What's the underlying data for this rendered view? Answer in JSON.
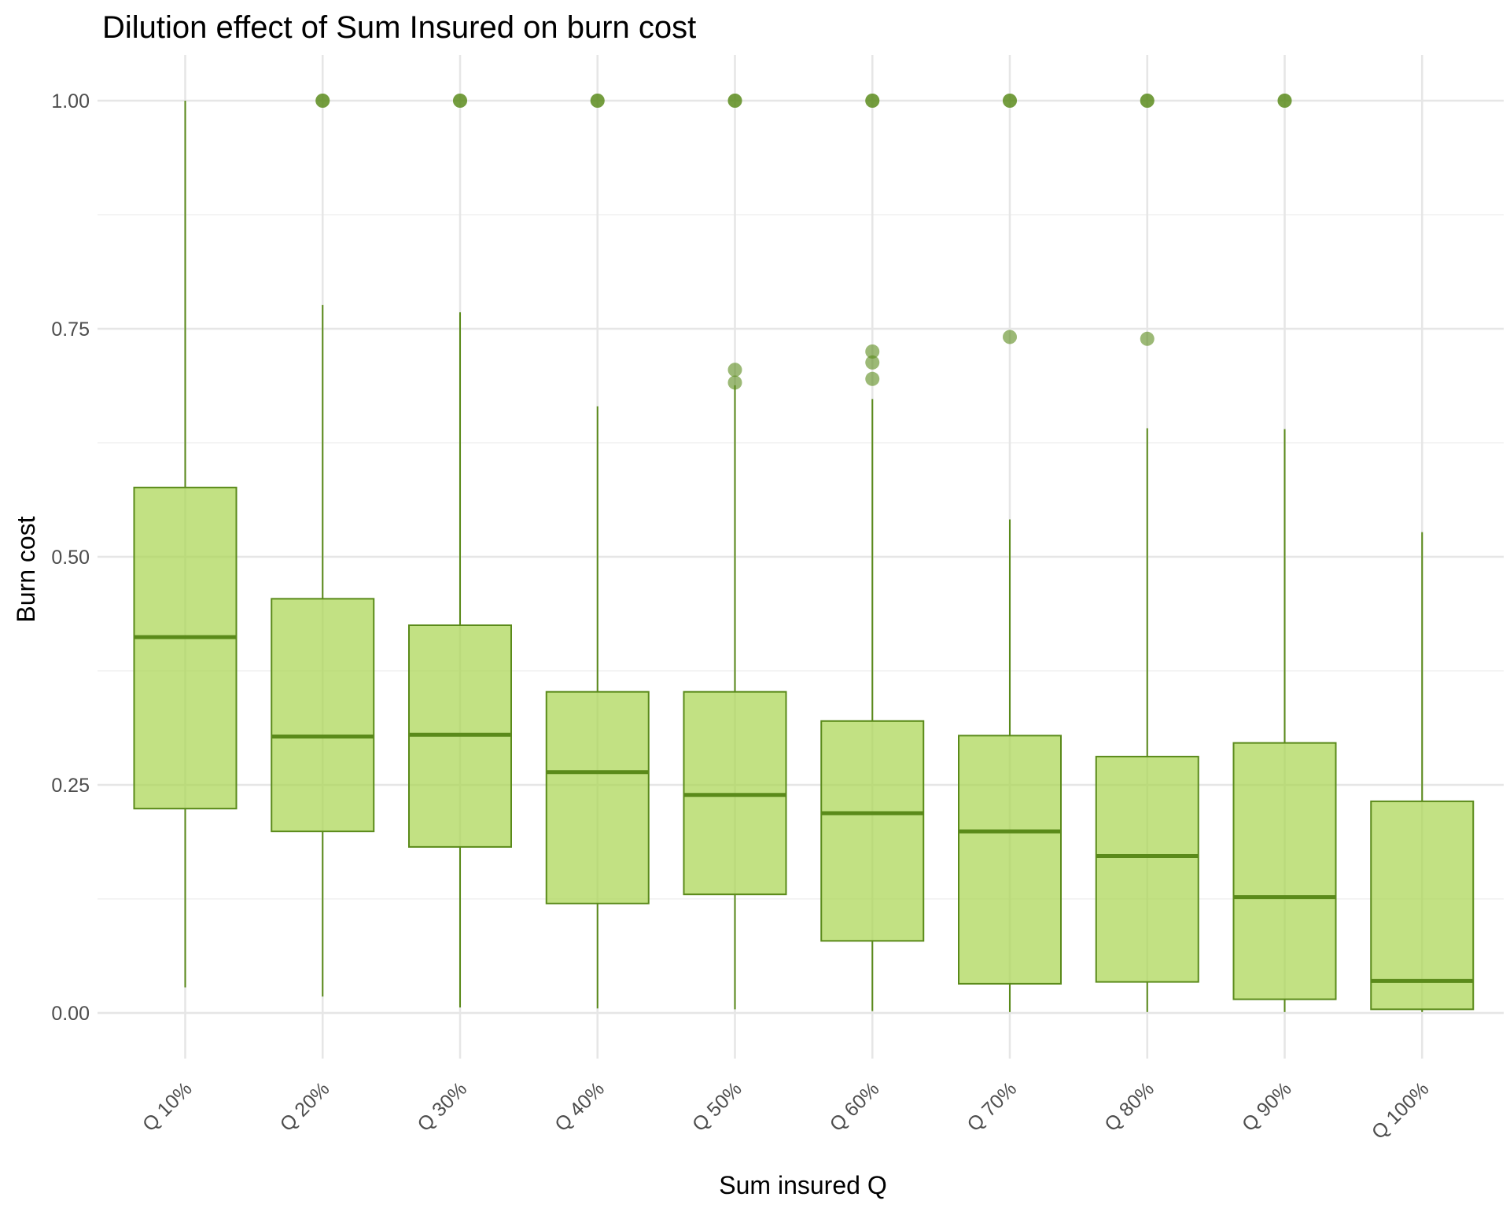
{
  "chart_data": {
    "type": "boxplot",
    "title": "Dilution effect of Sum Insured on burn cost",
    "xlabel": "Sum insured Q",
    "ylabel": "Burn cost",
    "ylim": [
      -0.05,
      1.05
    ],
    "yticks": [
      "0.00",
      "0.25",
      "0.50",
      "0.75",
      "1.00"
    ],
    "grid": true,
    "legend": "none",
    "colors": {
      "fill": "#a8d44e",
      "line": "#5a8a1a",
      "outlier": "#5a8a1a"
    },
    "categories": [
      "Q 10%",
      "Q 20%",
      "Q 30%",
      "Q 40%",
      "Q 50%",
      "Q 60%",
      "Q 70%",
      "Q 80%",
      "Q 90%",
      "Q 100%"
    ],
    "boxes": [
      {
        "category": "Q 10%",
        "whisker_low": 0.028,
        "q1": 0.224,
        "median": 0.412,
        "q3": 0.576,
        "whisker_high": 1.0,
        "outliers": []
      },
      {
        "category": "Q 20%",
        "whisker_low": 0.018,
        "q1": 0.199,
        "median": 0.303,
        "q3": 0.454,
        "whisker_high": 0.776,
        "outliers": [
          1.0
        ]
      },
      {
        "category": "Q 30%",
        "whisker_low": 0.006,
        "q1": 0.182,
        "median": 0.305,
        "q3": 0.425,
        "whisker_high": 0.768,
        "outliers": [
          1.0
        ]
      },
      {
        "category": "Q 40%",
        "whisker_low": 0.005,
        "q1": 0.12,
        "median": 0.264,
        "q3": 0.352,
        "whisker_high": 0.665,
        "outliers": [
          1.0
        ]
      },
      {
        "category": "Q 50%",
        "whisker_low": 0.004,
        "q1": 0.13,
        "median": 0.239,
        "q3": 0.352,
        "whisker_high": 0.688,
        "outliers": [
          0.705,
          0.691,
          1.0
        ]
      },
      {
        "category": "Q 60%",
        "whisker_low": 0.002,
        "q1": 0.079,
        "median": 0.219,
        "q3": 0.32,
        "whisker_high": 0.673,
        "outliers": [
          0.725,
          0.713,
          0.695,
          1.0
        ]
      },
      {
        "category": "Q 70%",
        "whisker_low": 0.001,
        "q1": 0.032,
        "median": 0.199,
        "q3": 0.304,
        "whisker_high": 0.541,
        "outliers": [
          0.741,
          1.0
        ]
      },
      {
        "category": "Q 80%",
        "whisker_low": 0.001,
        "q1": 0.034,
        "median": 0.172,
        "q3": 0.281,
        "whisker_high": 0.641,
        "outliers": [
          0.739,
          1.0
        ]
      },
      {
        "category": "Q 90%",
        "whisker_low": 0.001,
        "q1": 0.015,
        "median": 0.127,
        "q3": 0.296,
        "whisker_high": 0.64,
        "outliers": [
          1.0
        ]
      },
      {
        "category": "Q 100%",
        "whisker_low": 0.001,
        "q1": 0.004,
        "median": 0.035,
        "q3": 0.232,
        "whisker_high": 0.527,
        "outliers": []
      }
    ]
  }
}
